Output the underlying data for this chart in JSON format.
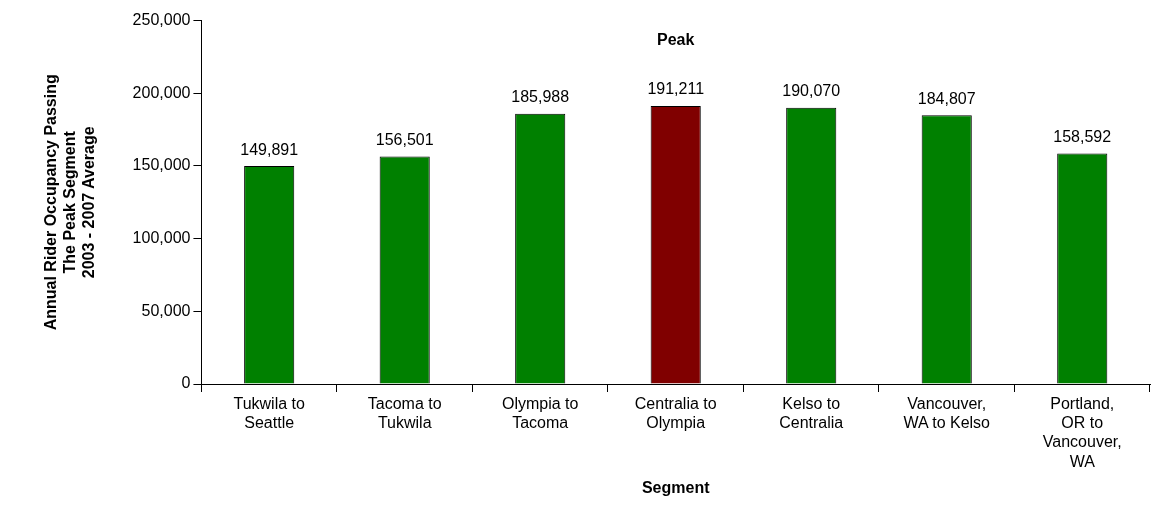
{
  "chart_data": {
    "type": "bar",
    "xlabel": "Segment",
    "ylabel": "Annual Rider Occupancy Passing\nThe Peak Segment\n2003 - 2007 Average",
    "categories": [
      "Tukwila to Seattle",
      "Tacoma to Tukwila",
      "Olympia to Tacoma",
      "Centralia to Olympia",
      "Kelso to Centralia",
      "Vancouver, WA to Kelso",
      "Portland, OR to Vancouver, WA"
    ],
    "values": [
      149891,
      156501,
      185988,
      191211,
      190070,
      184807,
      158592
    ],
    "colors": [
      "#008000",
      "#008000",
      "#008000",
      "#800000",
      "#008000",
      "#008000",
      "#008000"
    ],
    "value_labels": [
      "149,891",
      "156,501",
      "185,988",
      "191,211",
      "190,070",
      "184,807",
      "158,592"
    ],
    "ylim": [
      0,
      250000
    ],
    "yticks": [
      0,
      {
        "value": 50000,
        "label": "50,000"
      },
      {
        "value": 100000,
        "label": "100,000"
      },
      {
        "value": 150000,
        "label": "150,000"
      },
      {
        "value": 200000,
        "label": "200,000"
      },
      {
        "value": 250000,
        "label": "250,000"
      }
    ],
    "grid": false,
    "legend": false,
    "annotations": [
      "Peak"
    ]
  }
}
